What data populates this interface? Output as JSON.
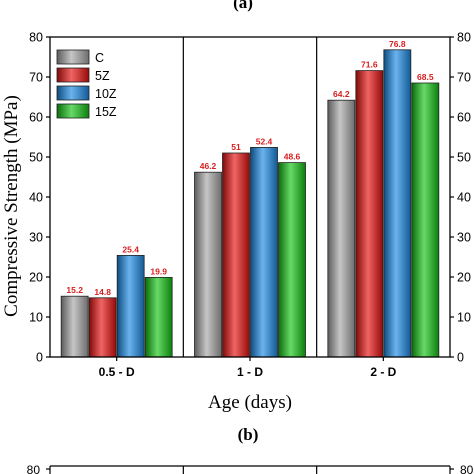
{
  "panel_a_label": "(a)",
  "panel_b_label": "(b)",
  "panel_b_tick": "80",
  "chart_data": {
    "type": "bar",
    "title": "",
    "xlabel": "Age (days)",
    "ylabel": "Compressive Strength (MPa)",
    "ylim": [
      0,
      80
    ],
    "yticks": [
      0,
      10,
      20,
      30,
      40,
      50,
      60,
      70,
      80
    ],
    "grid": false,
    "legend_position": "top-left",
    "categories": [
      "0.5 - D",
      "1 - D",
      "2 - D"
    ],
    "series": [
      {
        "name": "C",
        "values": [
          15.2,
          46.2,
          64.2
        ],
        "color": "#a8a8a8",
        "labels": [
          "15.2",
          "46.2",
          "64.2"
        ]
      },
      {
        "name": "5Z",
        "values": [
          14.8,
          51,
          71.6
        ],
        "color": "#e81010",
        "labels": [
          "14.8",
          "51",
          "71.6"
        ]
      },
      {
        "name": "10Z",
        "values": [
          25.4,
          52.4,
          76.8
        ],
        "color": "#1a8ae6",
        "labels": [
          "25.4",
          "52.4",
          "76.8"
        ]
      },
      {
        "name": "15Z",
        "values": [
          19.9,
          48.6,
          68.5
        ],
        "color": "#14c414",
        "labels": [
          "19.9",
          "48.6",
          "68.5"
        ]
      }
    ],
    "data_label_color": "#d81e1e"
  }
}
